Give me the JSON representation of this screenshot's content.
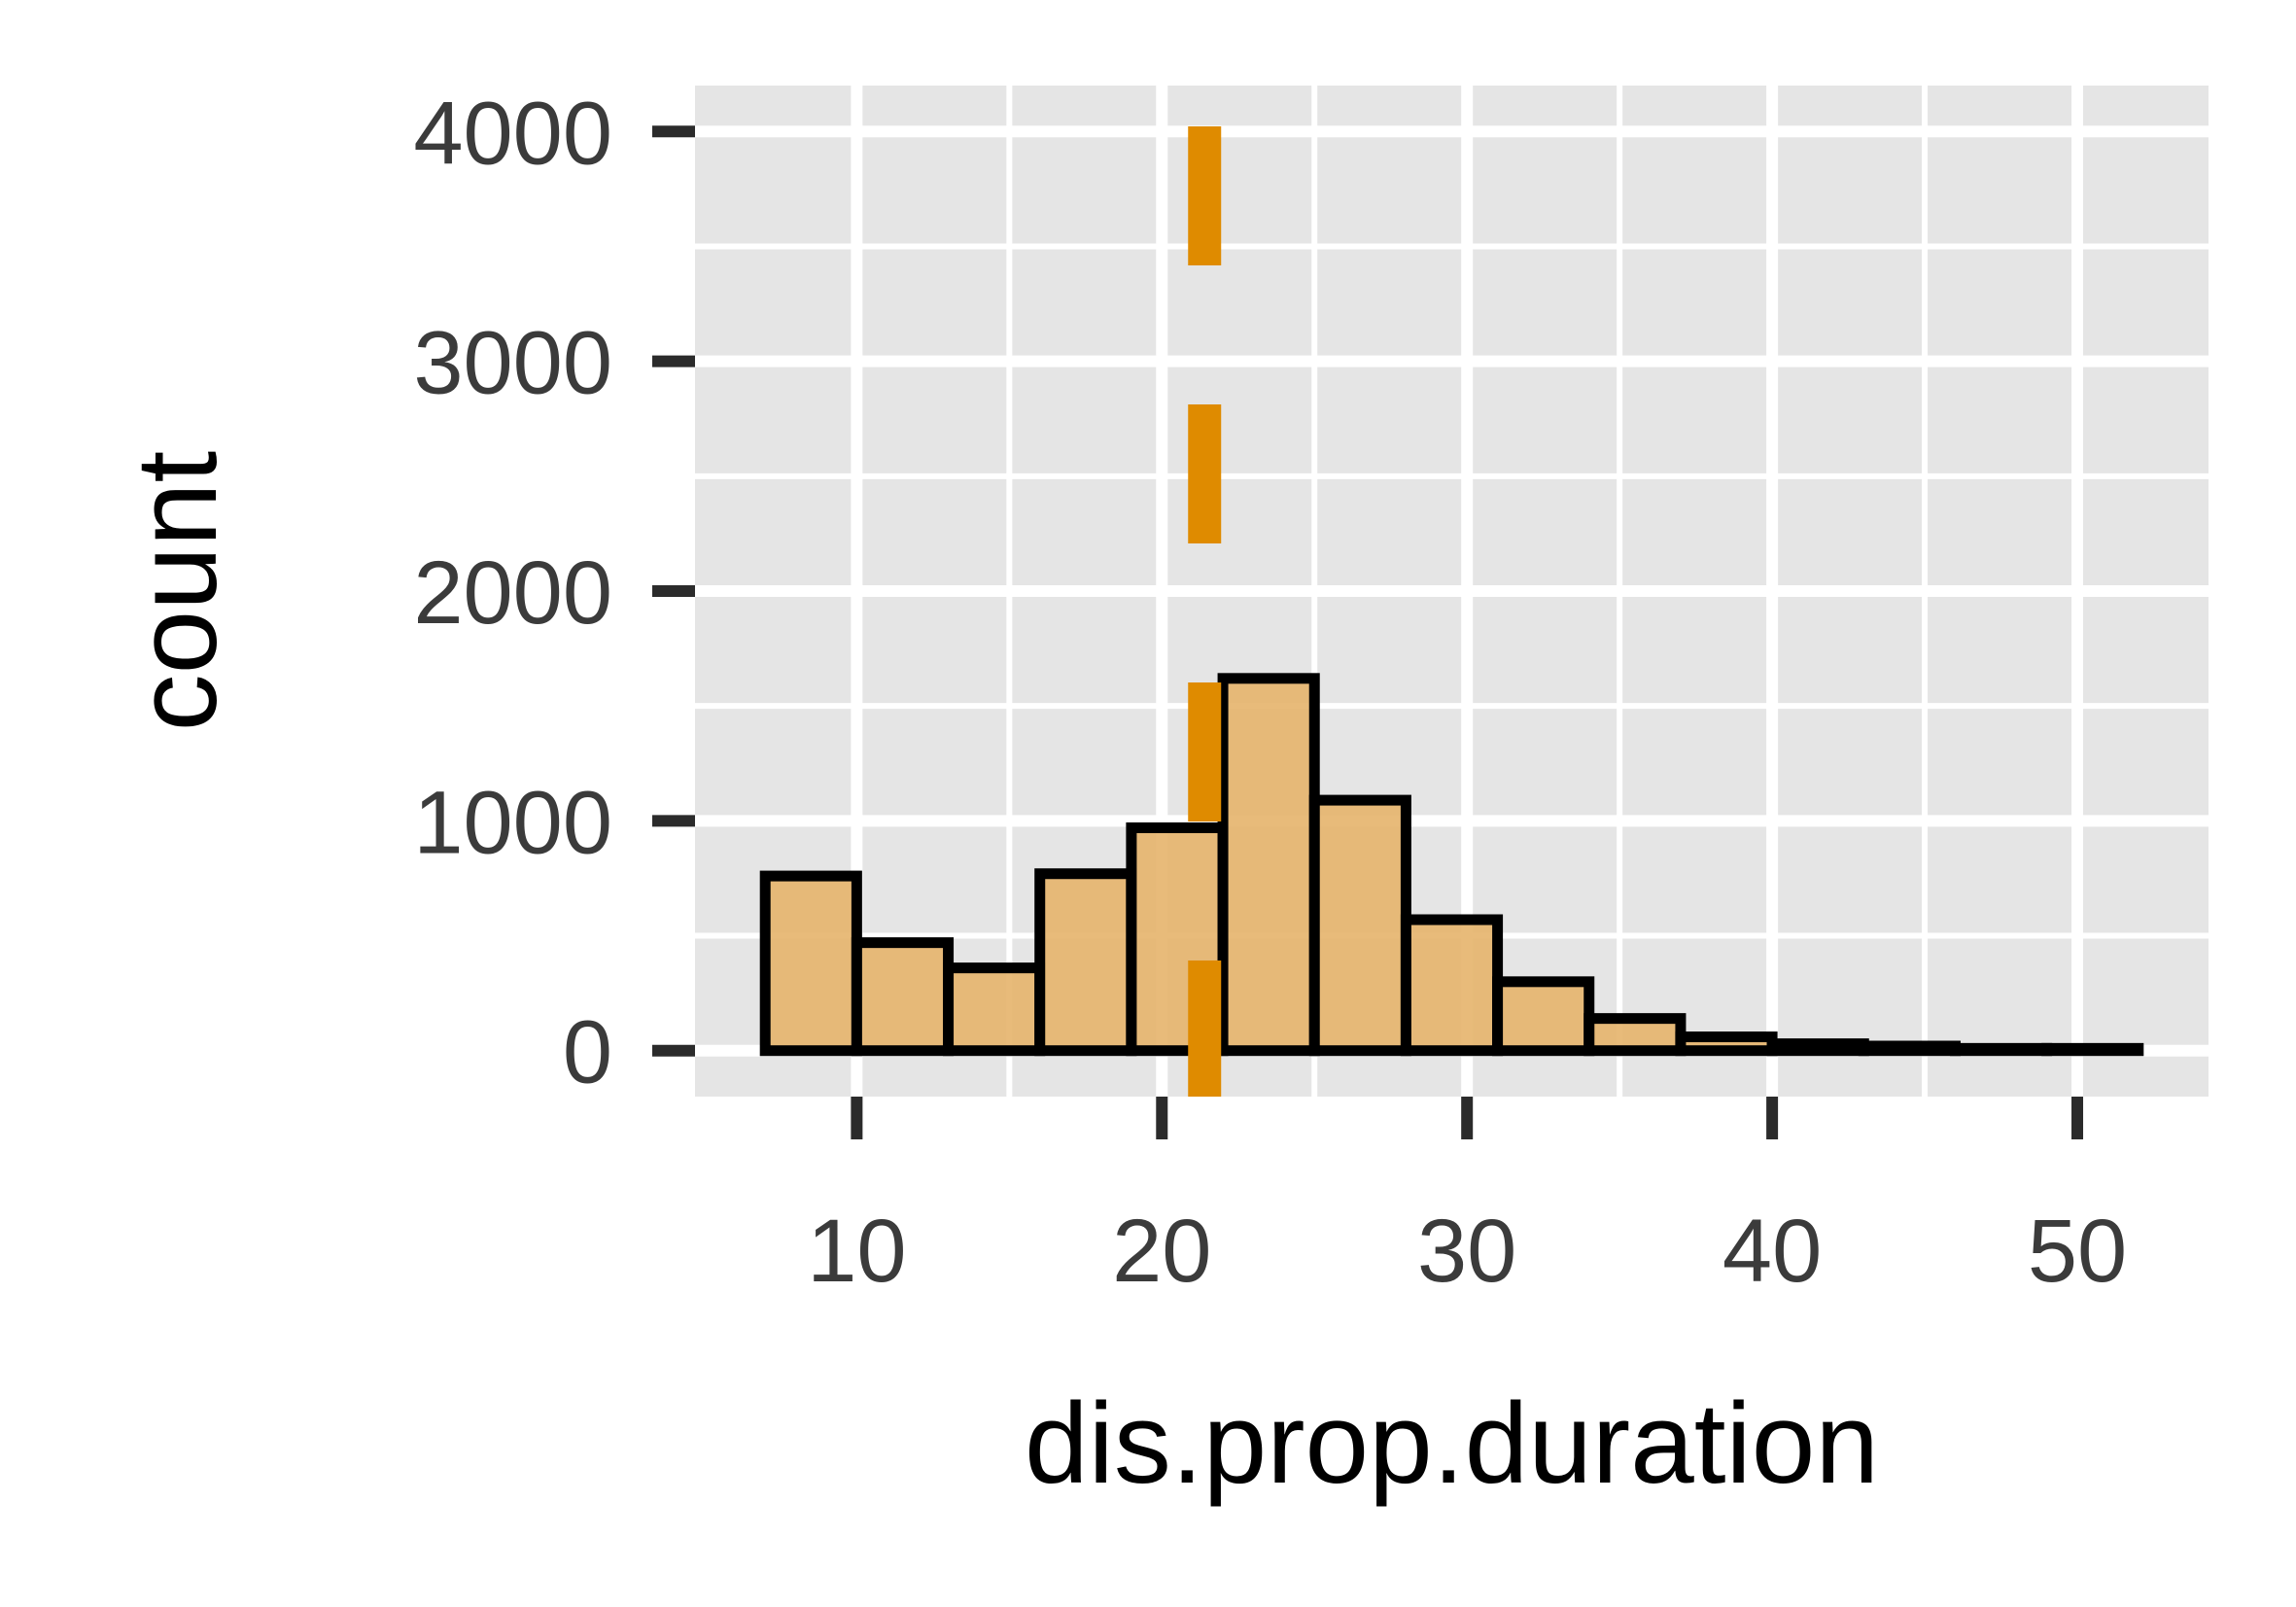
{
  "chart_data": {
    "type": "bar",
    "subtype": "histogram",
    "xlabel": "dis.prop.duration",
    "ylabel": "count",
    "xlim": [
      4.7,
      54.3
    ],
    "ylim": [
      -200,
      4200
    ],
    "x_ticks": [
      10,
      20,
      30,
      40,
      50
    ],
    "y_ticks": [
      0,
      1000,
      2000,
      3000,
      4000
    ],
    "grid": true,
    "bins": [
      {
        "x0": 7.0,
        "x1": 10.0,
        "count": 760
      },
      {
        "x0": 10.0,
        "x1": 13.0,
        "count": 470
      },
      {
        "x0": 13.0,
        "x1": 16.0,
        "count": 360
      },
      {
        "x0": 16.0,
        "x1": 19.0,
        "count": 770
      },
      {
        "x0": 19.0,
        "x1": 22.0,
        "count": 970
      },
      {
        "x0": 22.0,
        "x1": 25.0,
        "count": 1620
      },
      {
        "x0": 25.0,
        "x1": 28.0,
        "count": 1090
      },
      {
        "x0": 28.0,
        "x1": 31.0,
        "count": 570
      },
      {
        "x0": 31.0,
        "x1": 34.0,
        "count": 300
      },
      {
        "x0": 34.0,
        "x1": 37.0,
        "count": 140
      },
      {
        "x0": 37.0,
        "x1": 40.0,
        "count": 60
      },
      {
        "x0": 40.0,
        "x1": 43.0,
        "count": 30
      },
      {
        "x0": 43.0,
        "x1": 46.0,
        "count": 20
      },
      {
        "x0": 46.0,
        "x1": 49.0,
        "count": 10
      },
      {
        "x0": 49.0,
        "x1": 52.0,
        "count": 10
      }
    ],
    "vline": {
      "x": 21.4,
      "style": "dashed"
    },
    "colors": {
      "panel": "#e5e5e5",
      "grid": "#ffffff",
      "bar_fill": "#e6b46b",
      "bar_outline": "#000000",
      "vline": "#df8b00",
      "tick_text": "#3b3b3b"
    }
  }
}
